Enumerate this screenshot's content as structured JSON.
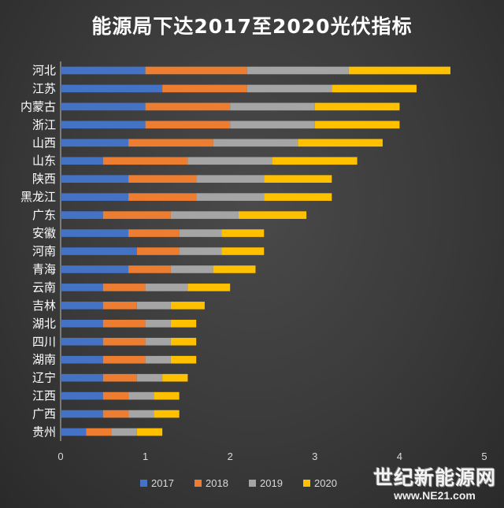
{
  "chart_data": {
    "type": "bar",
    "orientation": "horizontal",
    "stacked": true,
    "title": "能源局下达2017至2020光伏指标",
    "categories": [
      "河北",
      "江苏",
      "内蒙古",
      "浙江",
      "山西",
      "山东",
      "陕西",
      "黑龙江",
      "广东",
      "安徽",
      "河南",
      "青海",
      "云南",
      "吉林",
      "湖北",
      "四川",
      "湖南",
      "辽宁",
      "江西",
      "广西",
      "贵州"
    ],
    "series": [
      {
        "name": "2017",
        "color": "#4472C4",
        "values": [
          1.0,
          1.2,
          1.0,
          1.0,
          0.8,
          0.5,
          0.8,
          0.8,
          0.5,
          0.8,
          0.9,
          0.8,
          0.5,
          0.5,
          0.5,
          0.5,
          0.5,
          0.5,
          0.5,
          0.5,
          0.3
        ]
      },
      {
        "name": "2018",
        "color": "#ED7D31",
        "values": [
          1.2,
          1.0,
          1.0,
          1.0,
          1.0,
          1.0,
          0.8,
          0.8,
          0.8,
          0.6,
          0.5,
          0.5,
          0.5,
          0.4,
          0.5,
          0.5,
          0.5,
          0.4,
          0.3,
          0.3,
          0.3
        ]
      },
      {
        "name": "2019",
        "color": "#A5A5A5",
        "values": [
          1.2,
          1.0,
          1.0,
          1.0,
          1.0,
          1.0,
          0.8,
          0.8,
          0.8,
          0.5,
          0.5,
          0.5,
          0.5,
          0.4,
          0.3,
          0.3,
          0.3,
          0.3,
          0.3,
          0.3,
          0.3
        ]
      },
      {
        "name": "2020",
        "color": "#FFC000",
        "values": [
          1.2,
          1.0,
          1.0,
          1.0,
          1.0,
          1.0,
          0.8,
          0.8,
          0.8,
          0.5,
          0.5,
          0.5,
          0.5,
          0.4,
          0.3,
          0.3,
          0.3,
          0.3,
          0.3,
          0.3,
          0.3
        ]
      }
    ],
    "xticks": [
      "0",
      "1",
      "2",
      "3",
      "4",
      "5"
    ],
    "xlim": [
      0,
      5
    ],
    "grid": false,
    "legend": "bottom"
  },
  "watermark": {
    "name": "世纪新能源网",
    "url": "www.NE21.com"
  }
}
